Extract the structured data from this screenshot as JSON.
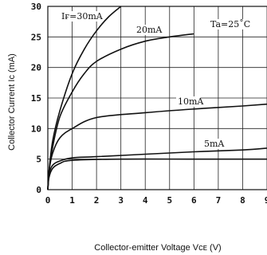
{
  "chart_data": {
    "type": "line",
    "xlabel": "Collector-emitter Voltage Vᴄᴇ (V)",
    "ylabel": "Collector Current Ic (mA)",
    "xlim": [
      0,
      9
    ],
    "ylim": [
      0,
      30
    ],
    "x_ticks": [
      "0",
      "1",
      "2",
      "3",
      "4",
      "5",
      "6",
      "7",
      "8",
      "9"
    ],
    "y_ticks": [
      "0",
      "5",
      "10",
      "15",
      "20",
      "25",
      "30"
    ],
    "grid": true,
    "annotations": [
      "Iғ=30mA",
      "Ta=25˚C"
    ],
    "series": [
      {
        "name": "30mA",
        "x": [
          0,
          0.05,
          0.2,
          0.5,
          1.0,
          1.5,
          2.0,
          2.5,
          3.0
        ],
        "y": [
          0,
          3,
          8,
          13,
          19,
          23,
          26,
          28.3,
          30
        ]
      },
      {
        "name": "20mA",
        "x": [
          0,
          0.05,
          0.2,
          0.5,
          1.0,
          1.5,
          2.0,
          3.0,
          4.0,
          5.0,
          6.0
        ],
        "y": [
          0,
          3,
          7,
          12,
          16,
          19,
          21,
          23,
          24.3,
          25,
          25.5
        ]
      },
      {
        "name": "10mA",
        "x": [
          0,
          0.05,
          0.2,
          0.5,
          1.0,
          2.0,
          4.0,
          6.0,
          8.0,
          9.0
        ],
        "y": [
          0,
          3,
          6,
          8.5,
          10,
          11.8,
          12.6,
          13.2,
          13.7,
          14
        ]
      },
      {
        "name": "5mA",
        "x": [
          0,
          0.05,
          0.2,
          0.5,
          1.0,
          2.0,
          4.0,
          6.0,
          8.0,
          9.0
        ],
        "y": [
          0,
          2.5,
          4,
          4.7,
          5.2,
          5.4,
          5.8,
          6.2,
          6.5,
          6.8
        ]
      },
      {
        "name": "",
        "x": [
          0,
          0.05,
          0.2,
          0.5,
          1.0,
          3.0,
          6.0,
          9.0
        ],
        "y": [
          0,
          2.0,
          3.5,
          4.3,
          4.8,
          5.0,
          5.0,
          5.0
        ]
      }
    ]
  }
}
